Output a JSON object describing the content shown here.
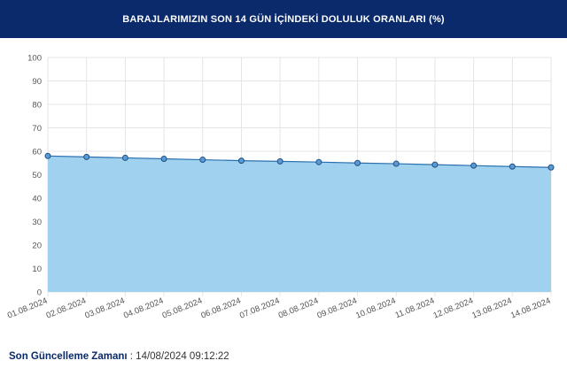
{
  "header": {
    "title": "BARAJLARIMIZIN SON 14 GÜN İÇİNDEKİ DOLULUK ORANLARI (%)"
  },
  "footer": {
    "label": "Son Güncelleme Zamanı",
    "separator": " : ",
    "value": "14/08/2024 09:12:22"
  },
  "colors": {
    "header_bg": "#0a2a6b",
    "area_fill": "#a0d2f0",
    "line": "#2a6fae",
    "marker_fill": "#5b9bd5",
    "grid": "#e4e4e4"
  },
  "chart_data": {
    "type": "area",
    "title": "BARAJLARIMIZIN SON 14 GÜN İÇİNDEKİ DOLULUK ORANLARI (%)",
    "xlabel": "",
    "ylabel": "",
    "categories": [
      "01.08.2024",
      "02.08.2024",
      "03.08.2024",
      "04.08.2024",
      "05.08.2024",
      "06.08.2024",
      "07.08.2024",
      "08.08.2024",
      "09.08.2024",
      "10.08.2024",
      "11.08.2024",
      "12.08.2024",
      "13.08.2024",
      "14.08.2024"
    ],
    "values": [
      58.0,
      57.6,
      57.2,
      56.8,
      56.4,
      56.0,
      55.7,
      55.4,
      55.0,
      54.7,
      54.3,
      53.9,
      53.5,
      53.1
    ],
    "ylim": [
      0,
      100
    ],
    "yticks": [
      0,
      10,
      20,
      30,
      40,
      50,
      60,
      70,
      80,
      90,
      100
    ],
    "grid": true,
    "legend": "none"
  }
}
